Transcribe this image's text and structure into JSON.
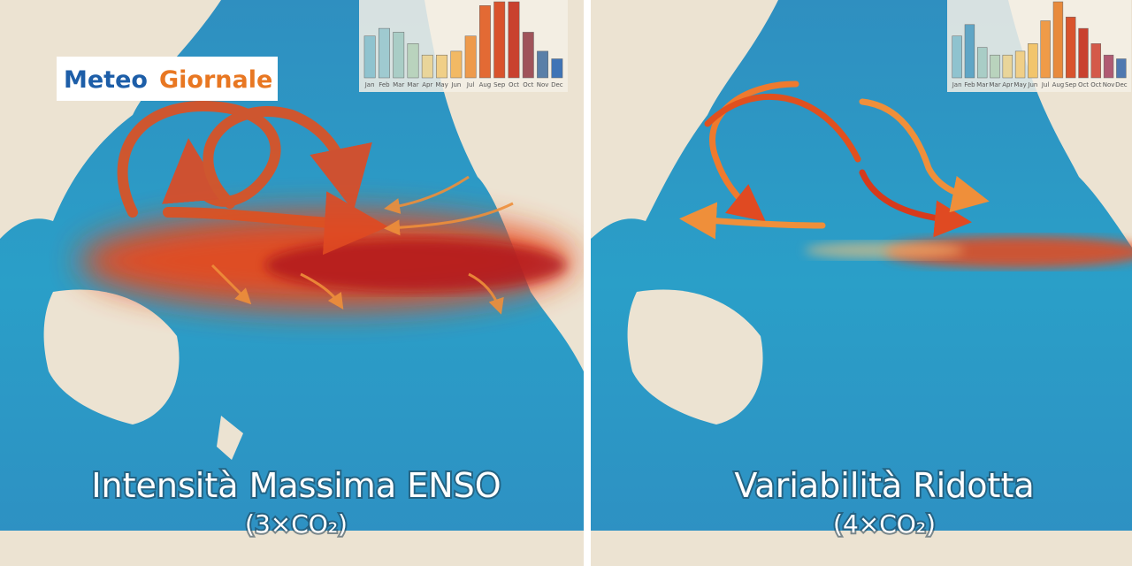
{
  "logo": {
    "word1": "Meteo",
    "word2": "Giornale"
  },
  "panels": [
    {
      "caption": "Intensità Massima ENSO",
      "subcaption": "(3×CO₂)",
      "mini_chart": {
        "ylim": [
          0,
          100
        ],
        "categories": [
          "Jan",
          "Feb",
          "Mar",
          "Mar",
          "Apr",
          "May",
          "Jun",
          "Jul",
          "Aug",
          "Sep",
          "Oct",
          "Oct",
          "Nov",
          "Dec"
        ],
        "values": [
          55,
          65,
          60,
          45,
          30,
          30,
          35,
          55,
          95,
          100,
          100,
          60,
          35,
          25
        ],
        "colors": [
          "#8fc3cf",
          "#9fcad0",
          "#a9cdc6",
          "#b9d3bd",
          "#e9d59a",
          "#f0cf88",
          "#f2b964",
          "#ee9a4b",
          "#e36a34",
          "#d9532c",
          "#c9412e",
          "#a0535a",
          "#5a7fa8",
          "#3f74b6"
        ]
      }
    },
    {
      "caption": "Variabilità Ridotta",
      "subcaption": "(4×CO₂)",
      "mini_chart": {
        "ylim": [
          0,
          100
        ],
        "categories": [
          "Jan",
          "Feb",
          "Mar",
          "Mar",
          "Apr",
          "May",
          "Jun",
          "Jul",
          "Aug",
          "Sep",
          "Oct",
          "Oct",
          "Nov",
          "Dec"
        ],
        "values": [
          55,
          70,
          40,
          30,
          30,
          35,
          45,
          75,
          100,
          80,
          65,
          45,
          30,
          25
        ],
        "colors": [
          "#8fc3cf",
          "#5fa6c6",
          "#a9cdc6",
          "#b9d3bd",
          "#e9d59a",
          "#f0cf88",
          "#f2c56c",
          "#ef9b48",
          "#e88a3c",
          "#d9532c",
          "#c9412e",
          "#d45a4a",
          "#b05a72",
          "#4f78b0"
        ]
      }
    }
  ]
}
